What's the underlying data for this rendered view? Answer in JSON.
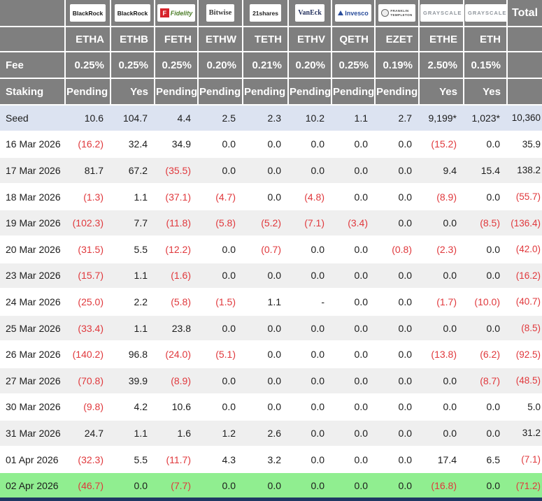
{
  "header": {
    "total_label": "Total",
    "providers": [
      {
        "id": "blackrock-1",
        "brand": "BlackRock",
        "style": "blackrock"
      },
      {
        "id": "blackrock-2",
        "brand": "BlackRock",
        "style": "blackrock"
      },
      {
        "id": "fidelity",
        "brand": "Fidelity",
        "style": "fidelity",
        "icon_letter": "F"
      },
      {
        "id": "bitwise",
        "brand": "Bitwise",
        "style": "bitwise"
      },
      {
        "id": "21shares",
        "brand": "21shares",
        "style": "shares21"
      },
      {
        "id": "vaneck",
        "brand": "VanEck",
        "style": "vaneck"
      },
      {
        "id": "invesco",
        "brand": "Invesco",
        "style": "invesco"
      },
      {
        "id": "franklin-templeton",
        "brand": "Franklin Templeton",
        "style": "franklin",
        "lines": [
          "FRANKLIN",
          "TEMPLETON"
        ]
      },
      {
        "id": "grayscale-1",
        "brand": "GRAYSCALE",
        "style": "grayscale"
      },
      {
        "id": "grayscale-2",
        "brand": "GRAYSCALE",
        "style": "grayscale"
      }
    ],
    "tickers": [
      "ETHA",
      "ETHB",
      "FETH",
      "ETHW",
      "TETH",
      "ETHV",
      "QETH",
      "EZET",
      "ETHE",
      "ETH"
    ],
    "fee_row": {
      "label": "Fee",
      "values": [
        "0.25%",
        "0.25%",
        "0.25%",
        "0.20%",
        "0.21%",
        "0.20%",
        "0.25%",
        "0.19%",
        "2.50%",
        "0.15%"
      ]
    },
    "staking_row": {
      "label": "Staking",
      "values": [
        "Pending",
        "Yes",
        "Pending",
        "Pending",
        "Pending",
        "Pending",
        "Pending",
        "Pending",
        "Yes",
        "Yes"
      ]
    }
  },
  "rows": [
    {
      "label": "Seed",
      "bg": "seed",
      "values": [
        "10.6",
        "104.7",
        "4.4",
        "2.5",
        "2.3",
        "10.2",
        "1.1",
        "2.7",
        "9,199*",
        "1,023*",
        "10,360"
      ]
    },
    {
      "label": "16 Mar 2026",
      "bg": "white",
      "values": [
        "(16.2)",
        "32.4",
        "34.9",
        "0.0",
        "0.0",
        "0.0",
        "0.0",
        "0.0",
        "(15.2)",
        "0.0",
        "35.9"
      ]
    },
    {
      "label": "17 Mar 2026",
      "bg": "stripe",
      "values": [
        "81.7",
        "67.2",
        "(35.5)",
        "0.0",
        "0.0",
        "0.0",
        "0.0",
        "0.0",
        "9.4",
        "15.4",
        "138.2"
      ]
    },
    {
      "label": "18 Mar 2026",
      "bg": "white",
      "values": [
        "(1.3)",
        "1.1",
        "(37.1)",
        "(4.7)",
        "0.0",
        "(4.8)",
        "0.0",
        "0.0",
        "(8.9)",
        "0.0",
        "(55.7)"
      ]
    },
    {
      "label": "19 Mar 2026",
      "bg": "stripe",
      "values": [
        "(102.3)",
        "7.7",
        "(11.8)",
        "(5.8)",
        "(5.2)",
        "(7.1)",
        "(3.4)",
        "0.0",
        "0.0",
        "(8.5)",
        "(136.4)"
      ]
    },
    {
      "label": "20 Mar 2026",
      "bg": "white",
      "values": [
        "(31.5)",
        "5.5",
        "(12.2)",
        "0.0",
        "(0.7)",
        "0.0",
        "0.0",
        "(0.8)",
        "(2.3)",
        "0.0",
        "(42.0)"
      ]
    },
    {
      "label": "23 Mar 2026",
      "bg": "stripe",
      "values": [
        "(15.7)",
        "1.1",
        "(1.6)",
        "0.0",
        "0.0",
        "0.0",
        "0.0",
        "0.0",
        "0.0",
        "0.0",
        "(16.2)"
      ]
    },
    {
      "label": "24 Mar 2026",
      "bg": "white",
      "values": [
        "(25.0)",
        "2.2",
        "(5.8)",
        "(1.5)",
        "1.1",
        "-",
        "0.0",
        "0.0",
        "(1.7)",
        "(10.0)",
        "(40.7)"
      ]
    },
    {
      "label": "25 Mar 2026",
      "bg": "stripe",
      "values": [
        "(33.4)",
        "1.1",
        "23.8",
        "0.0",
        "0.0",
        "0.0",
        "0.0",
        "0.0",
        "0.0",
        "0.0",
        "(8.5)"
      ]
    },
    {
      "label": "26 Mar 2026",
      "bg": "white",
      "values": [
        "(140.2)",
        "96.8",
        "(24.0)",
        "(5.1)",
        "0.0",
        "0.0",
        "0.0",
        "0.0",
        "(13.8)",
        "(6.2)",
        "(92.5)"
      ]
    },
    {
      "label": "27 Mar 2026",
      "bg": "stripe",
      "values": [
        "(70.8)",
        "39.9",
        "(8.9)",
        "0.0",
        "0.0",
        "0.0",
        "0.0",
        "0.0",
        "0.0",
        "(8.7)",
        "(48.5)"
      ]
    },
    {
      "label": "30 Mar 2026",
      "bg": "white",
      "values": [
        "(9.8)",
        "4.2",
        "10.6",
        "0.0",
        "0.0",
        "0.0",
        "0.0",
        "0.0",
        "0.0",
        "0.0",
        "5.0"
      ]
    },
    {
      "label": "31 Mar 2026",
      "bg": "stripe",
      "values": [
        "24.7",
        "1.1",
        "1.6",
        "1.2",
        "2.6",
        "0.0",
        "0.0",
        "0.0",
        "0.0",
        "0.0",
        "31.2"
      ]
    },
    {
      "label": "01 Apr 2026",
      "bg": "white",
      "values": [
        "(32.3)",
        "5.5",
        "(11.7)",
        "4.3",
        "3.2",
        "0.0",
        "0.0",
        "0.0",
        "17.4",
        "6.5",
        "(7.1)"
      ]
    },
    {
      "label": "02 Apr 2026",
      "bg": "green",
      "values": [
        "(46.7)",
        "0.0",
        "(7.7)",
        "0.0",
        "0.0",
        "0.0",
        "0.0",
        "0.0",
        "(16.8)",
        "0.0",
        "(71.2)"
      ]
    }
  ],
  "colors": {
    "header_bg": "#7f7f7f",
    "seed_row_bg": "#dce3f1",
    "stripe_bg": "#efefef",
    "green_row_bg": "#90ee90",
    "negative_text": "#e0383c",
    "bottom_bar": "#1f3864"
  }
}
